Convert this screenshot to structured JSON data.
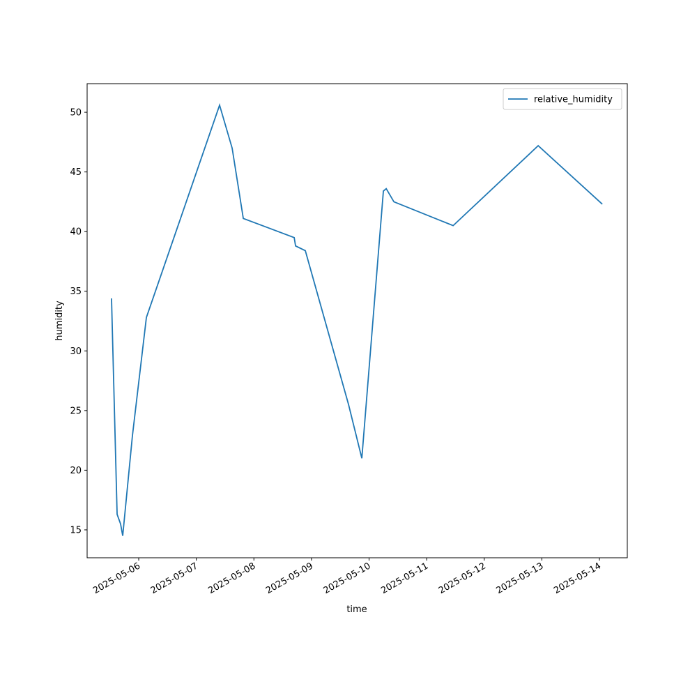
{
  "chart_data": {
    "type": "line",
    "x_label": "time",
    "y_label": "humidity",
    "x": [
      "2025-05-05T12:40",
      "2025-05-05T15:00",
      "2025-05-05T16:26",
      "2025-05-05T17:20",
      "2025-05-05T21:23",
      "2025-05-06T03:12",
      "2025-05-07T09:42",
      "2025-05-07T14:56",
      "2025-05-07T19:35",
      "2025-05-08T16:48",
      "2025-05-08T17:22",
      "2025-05-08T21:26",
      "2025-05-09T15:27",
      "2025-05-09T20:59",
      "2025-05-10T05:58",
      "2025-05-10T07:09",
      "2025-05-10T10:21",
      "2025-05-11T11:02",
      "2025-05-12T22:29",
      "2025-05-14T01:12"
    ],
    "series": [
      {
        "name": "relative_humidity",
        "color": "#1f77b4",
        "values": [
          34.4,
          16.3,
          15.5,
          14.5,
          22.9,
          32.8,
          50.6,
          47.0,
          41.1,
          39.5,
          38.8,
          38.4,
          25.5,
          21.0,
          43.4,
          43.6,
          42.5,
          40.5,
          47.2,
          42.3
        ]
      }
    ],
    "xlim": [
      "2025-05-05T02:30",
      "2025-05-14T11:37"
    ],
    "xticks": [
      "2025-05-06",
      "2025-05-07",
      "2025-05-08",
      "2025-05-09",
      "2025-05-10",
      "2025-05-11",
      "2025-05-12",
      "2025-05-13",
      "2025-05-14"
    ],
    "ylim": [
      12.66,
      52.4
    ],
    "yticks": [
      15,
      20,
      25,
      30,
      35,
      40,
      45,
      50
    ],
    "grid": false,
    "legend": "upper right"
  }
}
